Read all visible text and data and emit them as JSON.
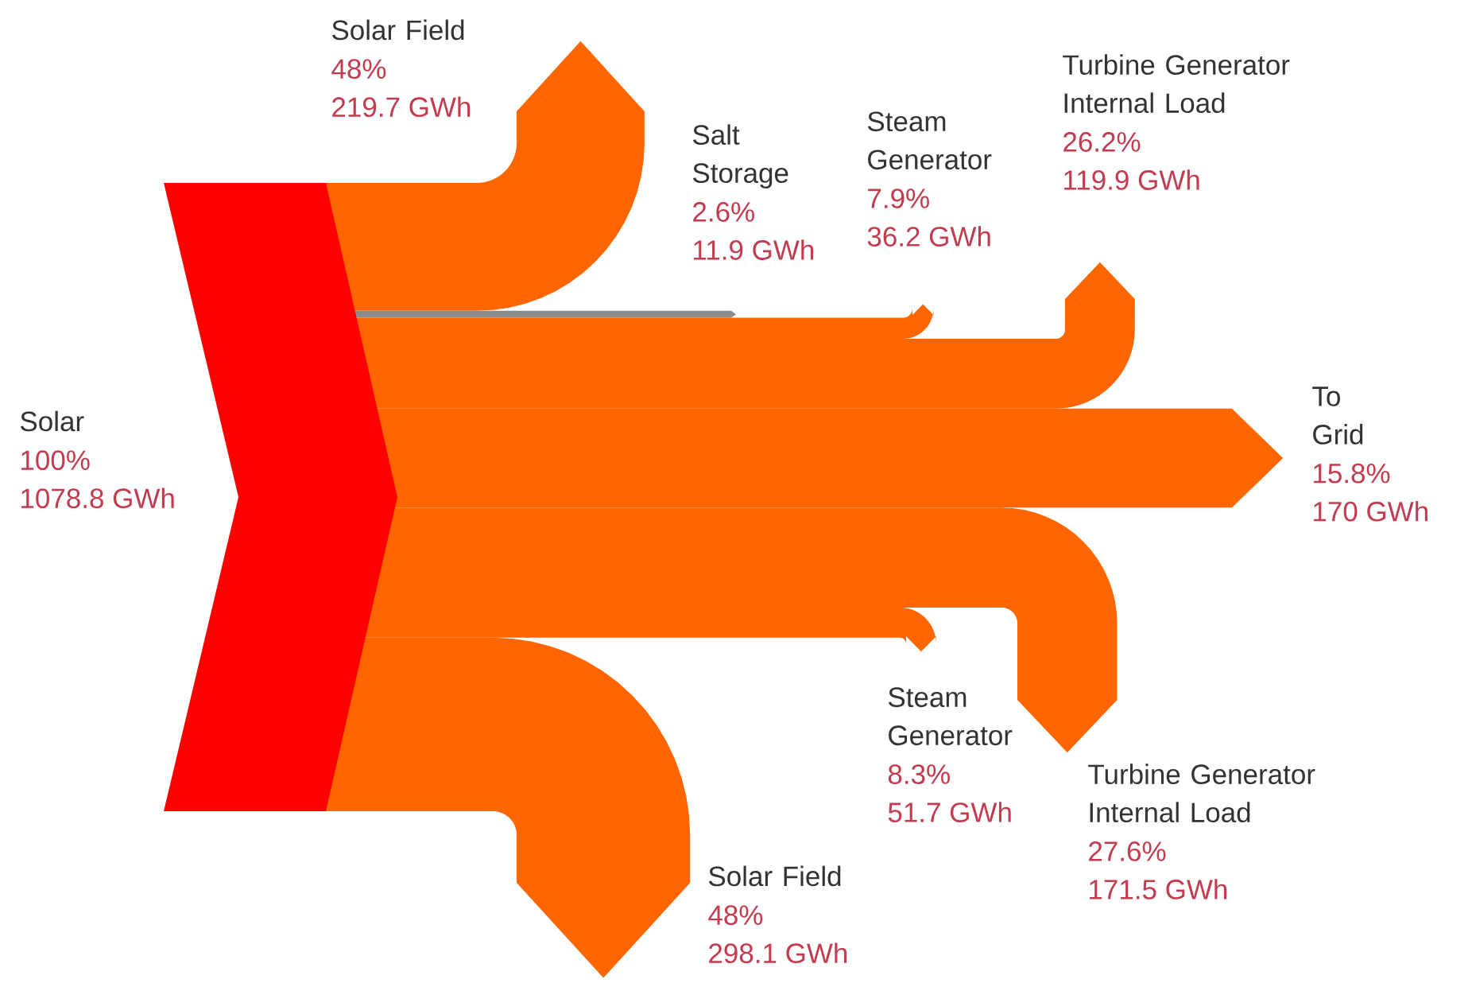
{
  "chart_data": {
    "type": "other",
    "categories": [
      "Solar",
      "Solar Field",
      "Salt Storage",
      "Steam Generator",
      "Turbine Generator Internal Load",
      "To Grid",
      "Turbine Generator Internal Load",
      "Steam Generator",
      "Solar Field"
    ],
    "colors": [
      "#ff0000",
      "#ff6600",
      "#8c8c8c",
      "#ff6600",
      "#ff6600",
      "#ff6600",
      "#ff6600",
      "#ff6600",
      "#ff6600"
    ],
    "series": [
      {
        "values": [
          100,
          48,
          2.6,
          7.9,
          26.2,
          15.8,
          27.6,
          8.3,
          48
        ],
        "value_labels": [
          "100%",
          "48%",
          "2.6%",
          "7.9%",
          "26.2%",
          "15.8%",
          "27.6%",
          "8.3%",
          "48%"
        ]
      },
      {
        "values": [
          1078.8,
          219.7,
          11.9,
          36.2,
          119.9,
          170,
          171.5,
          51.7,
          298.1
        ],
        "value_labels": [
          "1078.8 GWh",
          "219.7 GWh",
          "11.9 GWh",
          "36.2 GWh",
          "119.9 GWh",
          "170 GWh",
          "171.5 GWh",
          "51.7 GWh",
          "298.1 GWh"
        ]
      }
    ]
  }
}
